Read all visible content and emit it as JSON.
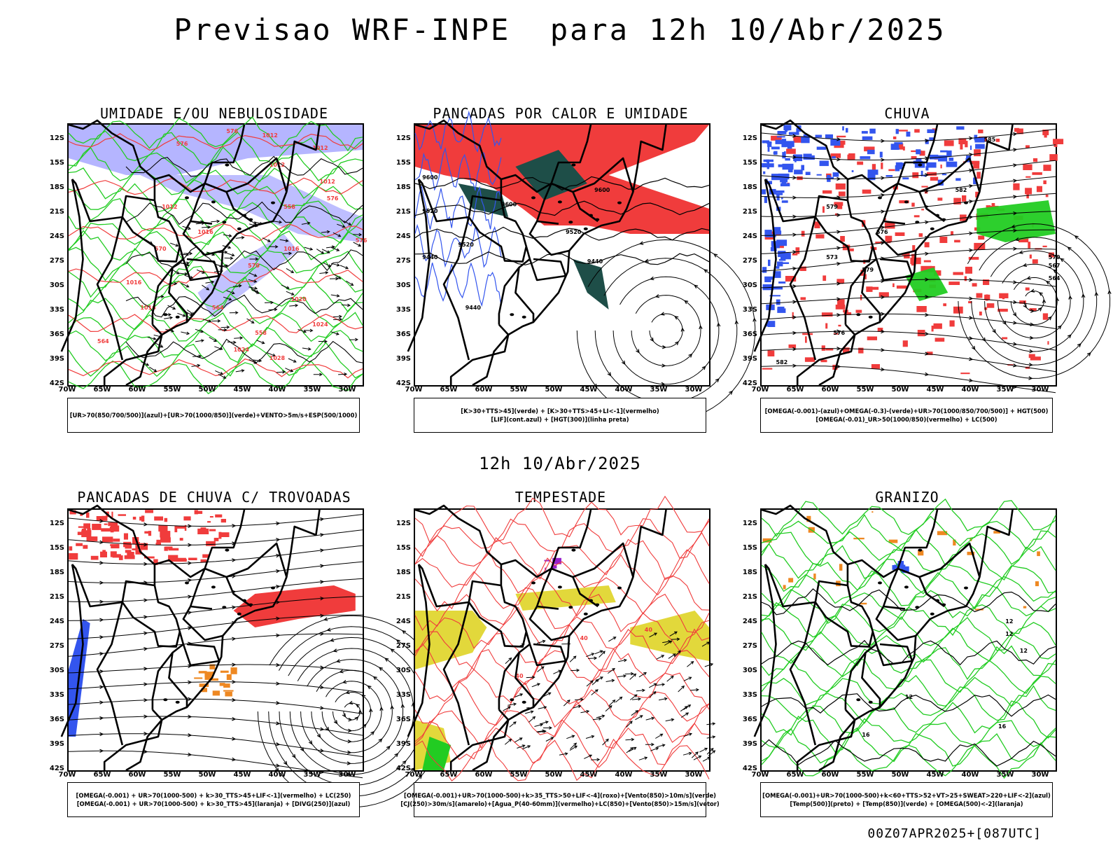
{
  "title": "Previsao WRF-INPE  para 12h 10/Abr/2025",
  "mid_title": "12h 10/Abr/2025",
  "footer": "00Z07APR2025+[087UTC]",
  "lat_labels": [
    "12S",
    "15S",
    "18S",
    "21S",
    "24S",
    "27S",
    "30S",
    "33S",
    "36S",
    "39S",
    "42S"
  ],
  "lon_labels": [
    "70W",
    "65W",
    "60W",
    "55W",
    "50W",
    "45W",
    "40W",
    "35W",
    "30W"
  ],
  "colors": {
    "blue": "#3355ee",
    "lavender": "#a8a8ff",
    "green": "#22cc22",
    "red": "#f03c3c",
    "dark_green": "#1e4e48",
    "yellow": "#e0d630",
    "orange": "#ee8822",
    "purple": "#9922cc",
    "black": "#000000"
  },
  "panels": [
    {
      "title": "UMIDADE E/OU NEBULOSIDADE",
      "legend": [
        "[UR>70(850/700/500)](azul)+[UR>70(1000/850)](verde)+VENTO>5m/s+ESP(500/1000)"
      ],
      "labels": [
        "1012",
        "1012",
        "1012",
        "1012",
        "1012",
        "1016",
        "1016",
        "1016",
        "1016",
        "1020",
        "1024",
        "1024",
        "1028",
        "576",
        "576",
        "576",
        "576",
        "570",
        "570",
        "564",
        "564",
        "558",
        "558"
      ]
    },
    {
      "title": "PANCADAS POR CALOR E UMIDADE",
      "legend": [
        "[K>30+TTS>45](verde) + [K>30+TTS>45+LI<-1](vermelho)",
        "[LIF](cont.azul) + [HGT(300)](linha preta)"
      ],
      "labels": [
        "9600",
        "9600",
        "9600",
        "9520",
        "9520",
        "9520",
        "9440",
        "9440",
        "9440"
      ]
    },
    {
      "title": "CHUVA",
      "legend": [
        "[OMEGA(-0.001)-(azul)+OMEGA(-0.3)-(verde)+UR>70(1000/850/700/500)] + HGT(500)",
        "[OMEGA(-0.01)_UR>50(1000/850)(vermelho) + LC(500)"
      ],
      "labels": [
        "585",
        "582",
        "579",
        "576",
        "573",
        "579",
        "576",
        "582",
        "570",
        "567",
        "564"
      ]
    },
    {
      "title": "PANCADAS DE CHUVA C/ TROVOADAS",
      "legend": [
        "[OMEGA(-0.001) + UR>70(1000-500) + k>30_TTS>45+LIF<-1](vermelho) + LC(250)",
        "[OMEGA(-0.001) + UR>70(1000-500) + k>30_TTS>45](laranja) + [DIVG(250)](azul)"
      ],
      "labels": []
    },
    {
      "title": "TEMPESTADE",
      "legend": [
        "[OMEGA(-0.001)+UR>70(1000-500)+k>35_TTS>50+LIF<-4](roxo)+[Vento(850)>10m/s](verde)",
        "[CJ(250)>30m/s](amarelo)+[Agua_P(40-60mm)](vermelho)+LC(850)+[Vento(850)>15m/s](vetor)"
      ],
      "labels": [
        "40",
        "40",
        "40"
      ]
    },
    {
      "title": "GRANIZO",
      "legend": [
        "[OMEGA(-0.001)+UR>70(1000-500)+k<60+TTS>52+VT>25+SWEAT>220+LIF<-2](azul)",
        "[Temp(500)](preto) + [Temp(850)](verde) + [OMEGA(500)<-2](laranja)"
      ],
      "labels": [
        "12",
        "12",
        "12",
        "12",
        "16",
        "16"
      ]
    }
  ]
}
